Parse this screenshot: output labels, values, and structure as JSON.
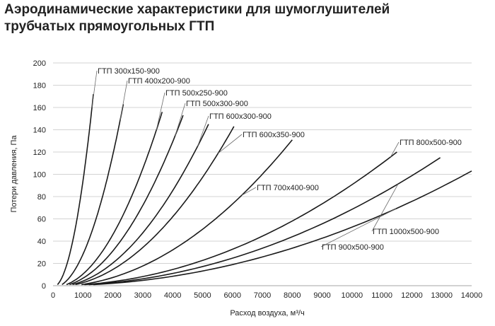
{
  "title_lines": [
    "Аэродинамические характеристики для шумоглушителей",
    "трубчатых прямоугольных ГТП"
  ],
  "chart_data": {
    "type": "line",
    "xlabel": "Расход воздуха, м³/ч",
    "ylabel": "Потери давления, Па",
    "xlim": [
      0,
      14000
    ],
    "ylim": [
      0,
      200
    ],
    "xticks": [
      0,
      1000,
      2000,
      3000,
      4000,
      5000,
      6000,
      7000,
      8000,
      9000,
      10000,
      11000,
      12000,
      13000,
      14000
    ],
    "yticks": [
      0,
      20,
      40,
      60,
      80,
      100,
      120,
      140,
      160,
      180,
      200
    ],
    "grid": "horizontal",
    "series": [
      {
        "name": "ГТП 300x150-900",
        "x_range": [
          150,
          1350
        ],
        "y_range": [
          1,
          172
        ]
      },
      {
        "name": "ГТП 400x200-900",
        "x_range": [
          300,
          2350
        ],
        "y_range": [
          1,
          163
        ]
      },
      {
        "name": "ГТП 500x250-900",
        "x_range": [
          450,
          3650
        ],
        "y_range": [
          1,
          156
        ]
      },
      {
        "name": "ГТП 500x300-900",
        "x_range": [
          550,
          4350
        ],
        "y_range": [
          1,
          153
        ]
      },
      {
        "name": "ГТП 600x300-900",
        "x_range": [
          650,
          5200
        ],
        "y_range": [
          1,
          145
        ]
      },
      {
        "name": "ГТП 600x350-900",
        "x_range": [
          750,
          6050
        ],
        "y_range": [
          1,
          143
        ]
      },
      {
        "name": "ГТП 700x400-900",
        "x_range": [
          950,
          8000
        ],
        "y_range": [
          1,
          131
        ]
      },
      {
        "name": "ГТП 800x500-900",
        "x_range": [
          1050,
          11500
        ],
        "y_range": [
          1,
          120
        ]
      },
      {
        "name": "ГТП 1000x500-900",
        "x_range": [
          1200,
          12950
        ],
        "y_range": [
          1,
          115
        ]
      },
      {
        "name": "ГТП 900x500-900",
        "x_range": [
          1350,
          14000
        ],
        "y_range": [
          1,
          103
        ]
      }
    ],
    "curve_label_text": [
      "ГТП 300x150-900",
      "ГТП 400x200-900",
      "ГТП 500x250-900",
      "ГТП 500x300-900",
      "ГТП 600x300-900",
      "ГТП 600x350-900",
      "ГТП 700x400-900",
      "ГТП 800x500-900",
      "ГТП 1000x500-900",
      "ГТП 900x500-900"
    ]
  }
}
